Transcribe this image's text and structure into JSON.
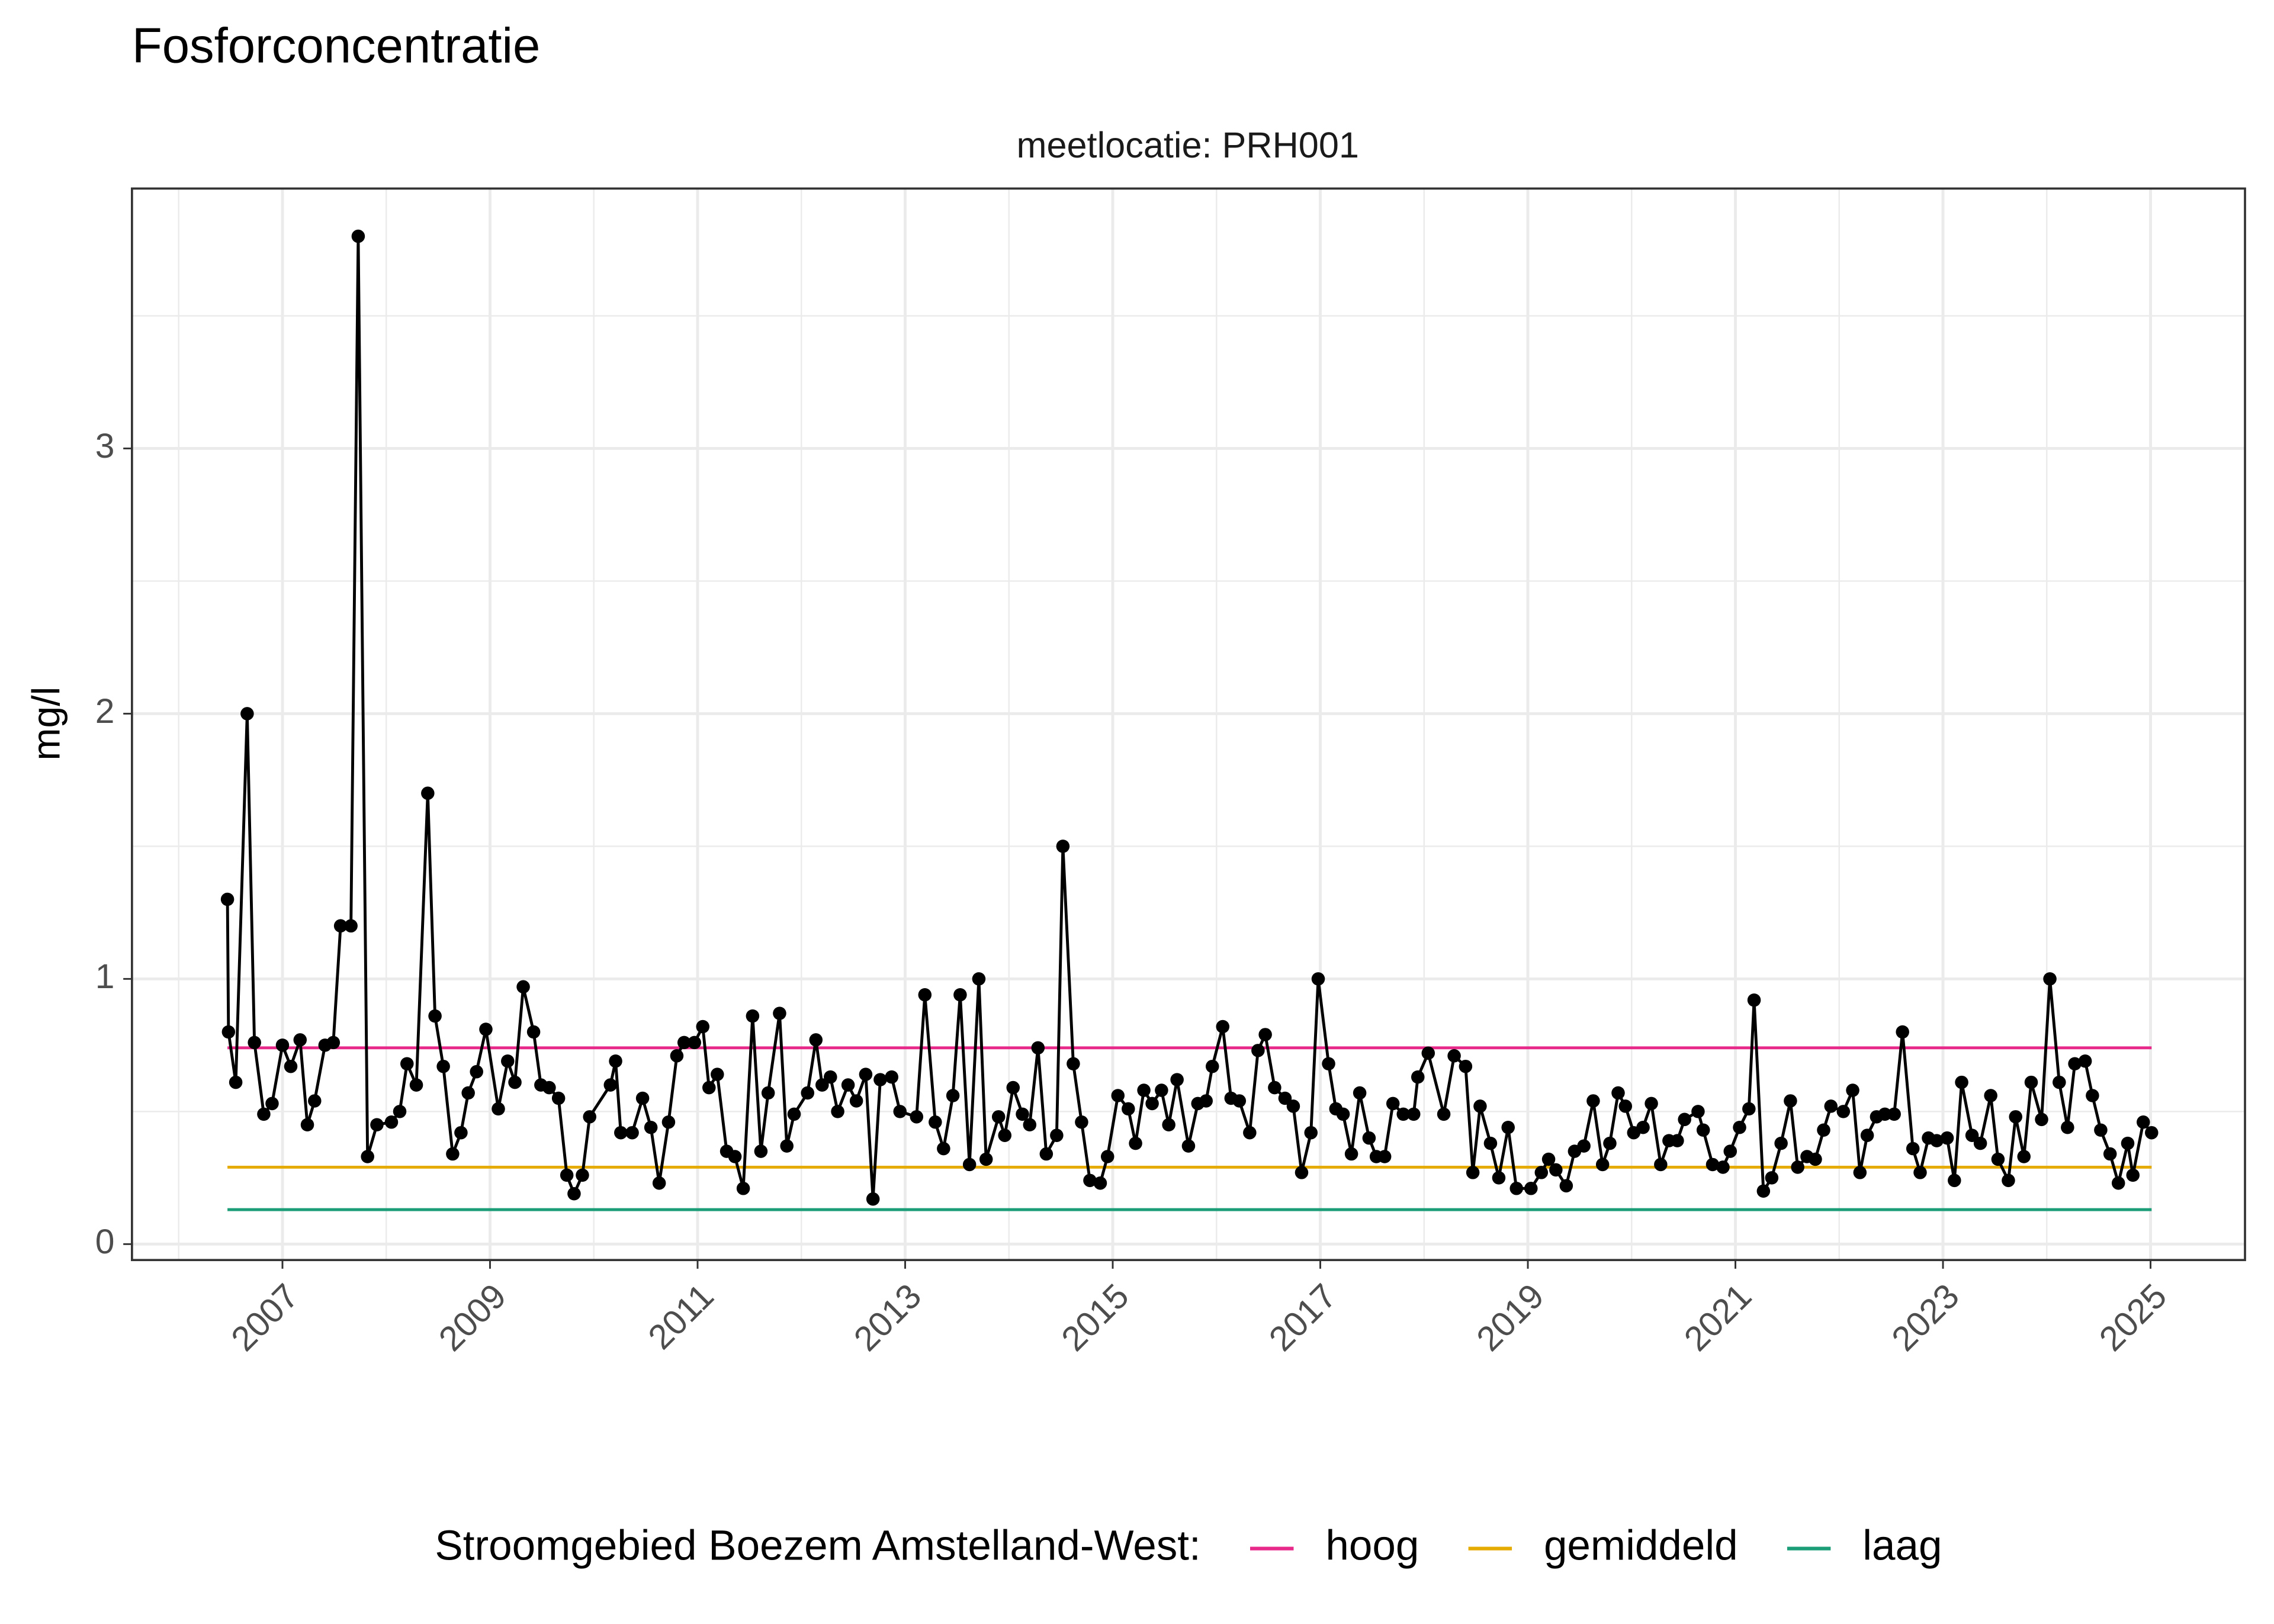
{
  "chart_data": {
    "type": "line",
    "title": "Fosforconcentratie",
    "subtitle": "meetlocatie: PRH001",
    "y_label": "mg/l",
    "color": "#000000",
    "x": [
      2006.47,
      2006.48,
      2006.55,
      2006.66,
      2006.73,
      2006.82,
      2006.9,
      2007.0,
      2007.08,
      2007.17,
      2007.24,
      2007.31,
      2007.41,
      2007.49,
      2007.56,
      2007.66,
      2007.73,
      2007.82,
      2007.91,
      2008.05,
      2008.13,
      2008.2,
      2008.29,
      2008.4,
      2008.47,
      2008.55,
      2008.64,
      2008.72,
      2008.79,
      2008.87,
      2008.96,
      2009.08,
      2009.17,
      2009.24,
      2009.32,
      2009.42,
      2009.49,
      2009.57,
      2009.66,
      2009.74,
      2009.81,
      2009.89,
      2009.96,
      2010.16,
      2010.21,
      2010.26,
      2010.37,
      2010.47,
      2010.55,
      2010.63,
      2010.72,
      2010.8,
      2010.87,
      2010.97,
      2011.05,
      2011.11,
      2011.19,
      2011.28,
      2011.36,
      2011.44,
      2011.53,
      2011.61,
      2011.68,
      2011.79,
      2011.86,
      2011.93,
      2012.06,
      2012.14,
      2012.2,
      2012.28,
      2012.35,
      2012.45,
      2012.53,
      2012.62,
      2012.69,
      2012.76,
      2012.87,
      2012.95,
      2013.11,
      2013.19,
      2013.29,
      2013.37,
      2013.46,
      2013.53,
      2013.62,
      2013.71,
      2013.78,
      2013.9,
      2013.96,
      2014.04,
      2014.13,
      2014.2,
      2014.28,
      2014.36,
      2014.46,
      2014.52,
      2014.62,
      2014.7,
      2014.78,
      2014.88,
      2014.95,
      2015.05,
      2015.15,
      2015.22,
      2015.3,
      2015.38,
      2015.47,
      2015.54,
      2015.62,
      2015.73,
      2015.82,
      2015.9,
      2015.96,
      2016.06,
      2016.14,
      2016.22,
      2016.32,
      2016.4,
      2016.47,
      2016.56,
      2016.66,
      2016.74,
      2016.82,
      2016.91,
      2016.98,
      2017.08,
      2017.15,
      2017.22,
      2017.3,
      2017.38,
      2017.47,
      2017.54,
      2017.62,
      2017.7,
      2017.8,
      2017.9,
      2017.94,
      2018.04,
      2018.19,
      2018.29,
      2018.4,
      2018.47,
      2018.54,
      2018.64,
      2018.72,
      2018.81,
      2018.89,
      2019.03,
      2019.13,
      2019.2,
      2019.27,
      2019.37,
      2019.45,
      2019.54,
      2019.63,
      2019.72,
      2019.79,
      2019.87,
      2019.94,
      2020.02,
      2020.11,
      2020.19,
      2020.28,
      2020.36,
      2020.44,
      2020.51,
      2020.64,
      2020.69,
      2020.78,
      2020.88,
      2020.95,
      2021.04,
      2021.13,
      2021.18,
      2021.27,
      2021.35,
      2021.44,
      2021.53,
      2021.6,
      2021.69,
      2021.77,
      2021.85,
      2021.92,
      2022.04,
      2022.13,
      2022.2,
      2022.27,
      2022.36,
      2022.44,
      2022.53,
      2022.61,
      2022.71,
      2022.78,
      2022.86,
      2022.94,
      2023.04,
      2023.11,
      2023.18,
      2023.28,
      2023.36,
      2023.46,
      2023.53,
      2023.63,
      2023.7,
      2023.78,
      2023.85,
      2023.95,
      2024.03,
      2024.12,
      2024.2,
      2024.27,
      2024.37,
      2024.44,
      2024.52,
      2024.61,
      2024.69,
      2024.78,
      2024.83,
      2024.93,
      2025.01
    ],
    "values": [
      1.3,
      0.8,
      0.61,
      2.0,
      0.76,
      0.49,
      0.53,
      0.75,
      0.67,
      0.77,
      0.45,
      0.54,
      0.75,
      0.76,
      1.2,
      1.2,
      3.8,
      0.33,
      0.45,
      0.46,
      0.5,
      0.68,
      0.6,
      1.7,
      0.86,
      0.67,
      0.34,
      0.42,
      0.57,
      0.65,
      0.81,
      0.51,
      0.69,
      0.61,
      0.97,
      0.8,
      0.6,
      0.59,
      0.55,
      0.26,
      0.19,
      0.26,
      0.48,
      0.6,
      0.69,
      0.42,
      0.42,
      0.55,
      0.44,
      0.23,
      0.46,
      0.71,
      0.76,
      0.76,
      0.82,
      0.59,
      0.64,
      0.35,
      0.33,
      0.21,
      0.86,
      0.35,
      0.57,
      0.87,
      0.37,
      0.49,
      0.57,
      0.77,
      0.6,
      0.63,
      0.5,
      0.6,
      0.54,
      0.64,
      0.17,
      0.62,
      0.63,
      0.5,
      0.48,
      0.94,
      0.46,
      0.36,
      0.56,
      0.94,
      0.3,
      1.0,
      0.32,
      0.48,
      0.41,
      0.59,
      0.49,
      0.45,
      0.74,
      0.34,
      0.41,
      1.5,
      0.68,
      0.46,
      0.24,
      0.23,
      0.33,
      0.56,
      0.51,
      0.38,
      0.58,
      0.53,
      0.58,
      0.45,
      0.62,
      0.37,
      0.53,
      0.54,
      0.67,
      0.82,
      0.55,
      0.54,
      0.42,
      0.73,
      0.79,
      0.59,
      0.55,
      0.52,
      0.27,
      0.42,
      1.0,
      0.68,
      0.51,
      0.49,
      0.34,
      0.57,
      0.4,
      0.33,
      0.33,
      0.53,
      0.49,
      0.49,
      0.63,
      0.72,
      0.49,
      0.71,
      0.67,
      0.27,
      0.52,
      0.38,
      0.25,
      0.44,
      0.21,
      0.21,
      0.27,
      0.32,
      0.28,
      0.22,
      0.35,
      0.37,
      0.54,
      0.3,
      0.38,
      0.57,
      0.52,
      0.42,
      0.44,
      0.53,
      0.3,
      0.39,
      0.39,
      0.47,
      0.5,
      0.43,
      0.3,
      0.29,
      0.35,
      0.44,
      0.51,
      0.92,
      0.2,
      0.25,
      0.38,
      0.54,
      0.29,
      0.33,
      0.32,
      0.43,
      0.52,
      0.5,
      0.58,
      0.27,
      0.41,
      0.48,
      0.49,
      0.49,
      0.8,
      0.36,
      0.27,
      0.4,
      0.39,
      0.4,
      0.24,
      0.61,
      0.41,
      0.38,
      0.56,
      0.32,
      0.24,
      0.48,
      0.33,
      0.61,
      0.47,
      1.0,
      0.61,
      0.44,
      0.68,
      0.69,
      0.56,
      0.43,
      0.34,
      0.23,
      0.38,
      0.26,
      0.46,
      0.42
    ],
    "reference_lines": [
      {
        "name": "hoog",
        "color": "#E7298A",
        "value": 0.74
      },
      {
        "name": "gemiddeld",
        "color": "#E6AB02",
        "value": 0.29
      },
      {
        "name": "laag",
        "color": "#1B9E77",
        "value": 0.13
      }
    ],
    "legend_title": "Stroomgebied Boezem Amstelland-West:",
    "legend_position": "bottom",
    "xlim": [
      2005.55,
      2025.91
    ],
    "xticks": [
      2007,
      2009,
      2011,
      2013,
      2015,
      2017,
      2019,
      2021,
      2023,
      2025
    ],
    "ylim": [
      -0.06,
      3.98
    ],
    "yticks": [
      0,
      1,
      2,
      3
    ],
    "grid": true
  }
}
